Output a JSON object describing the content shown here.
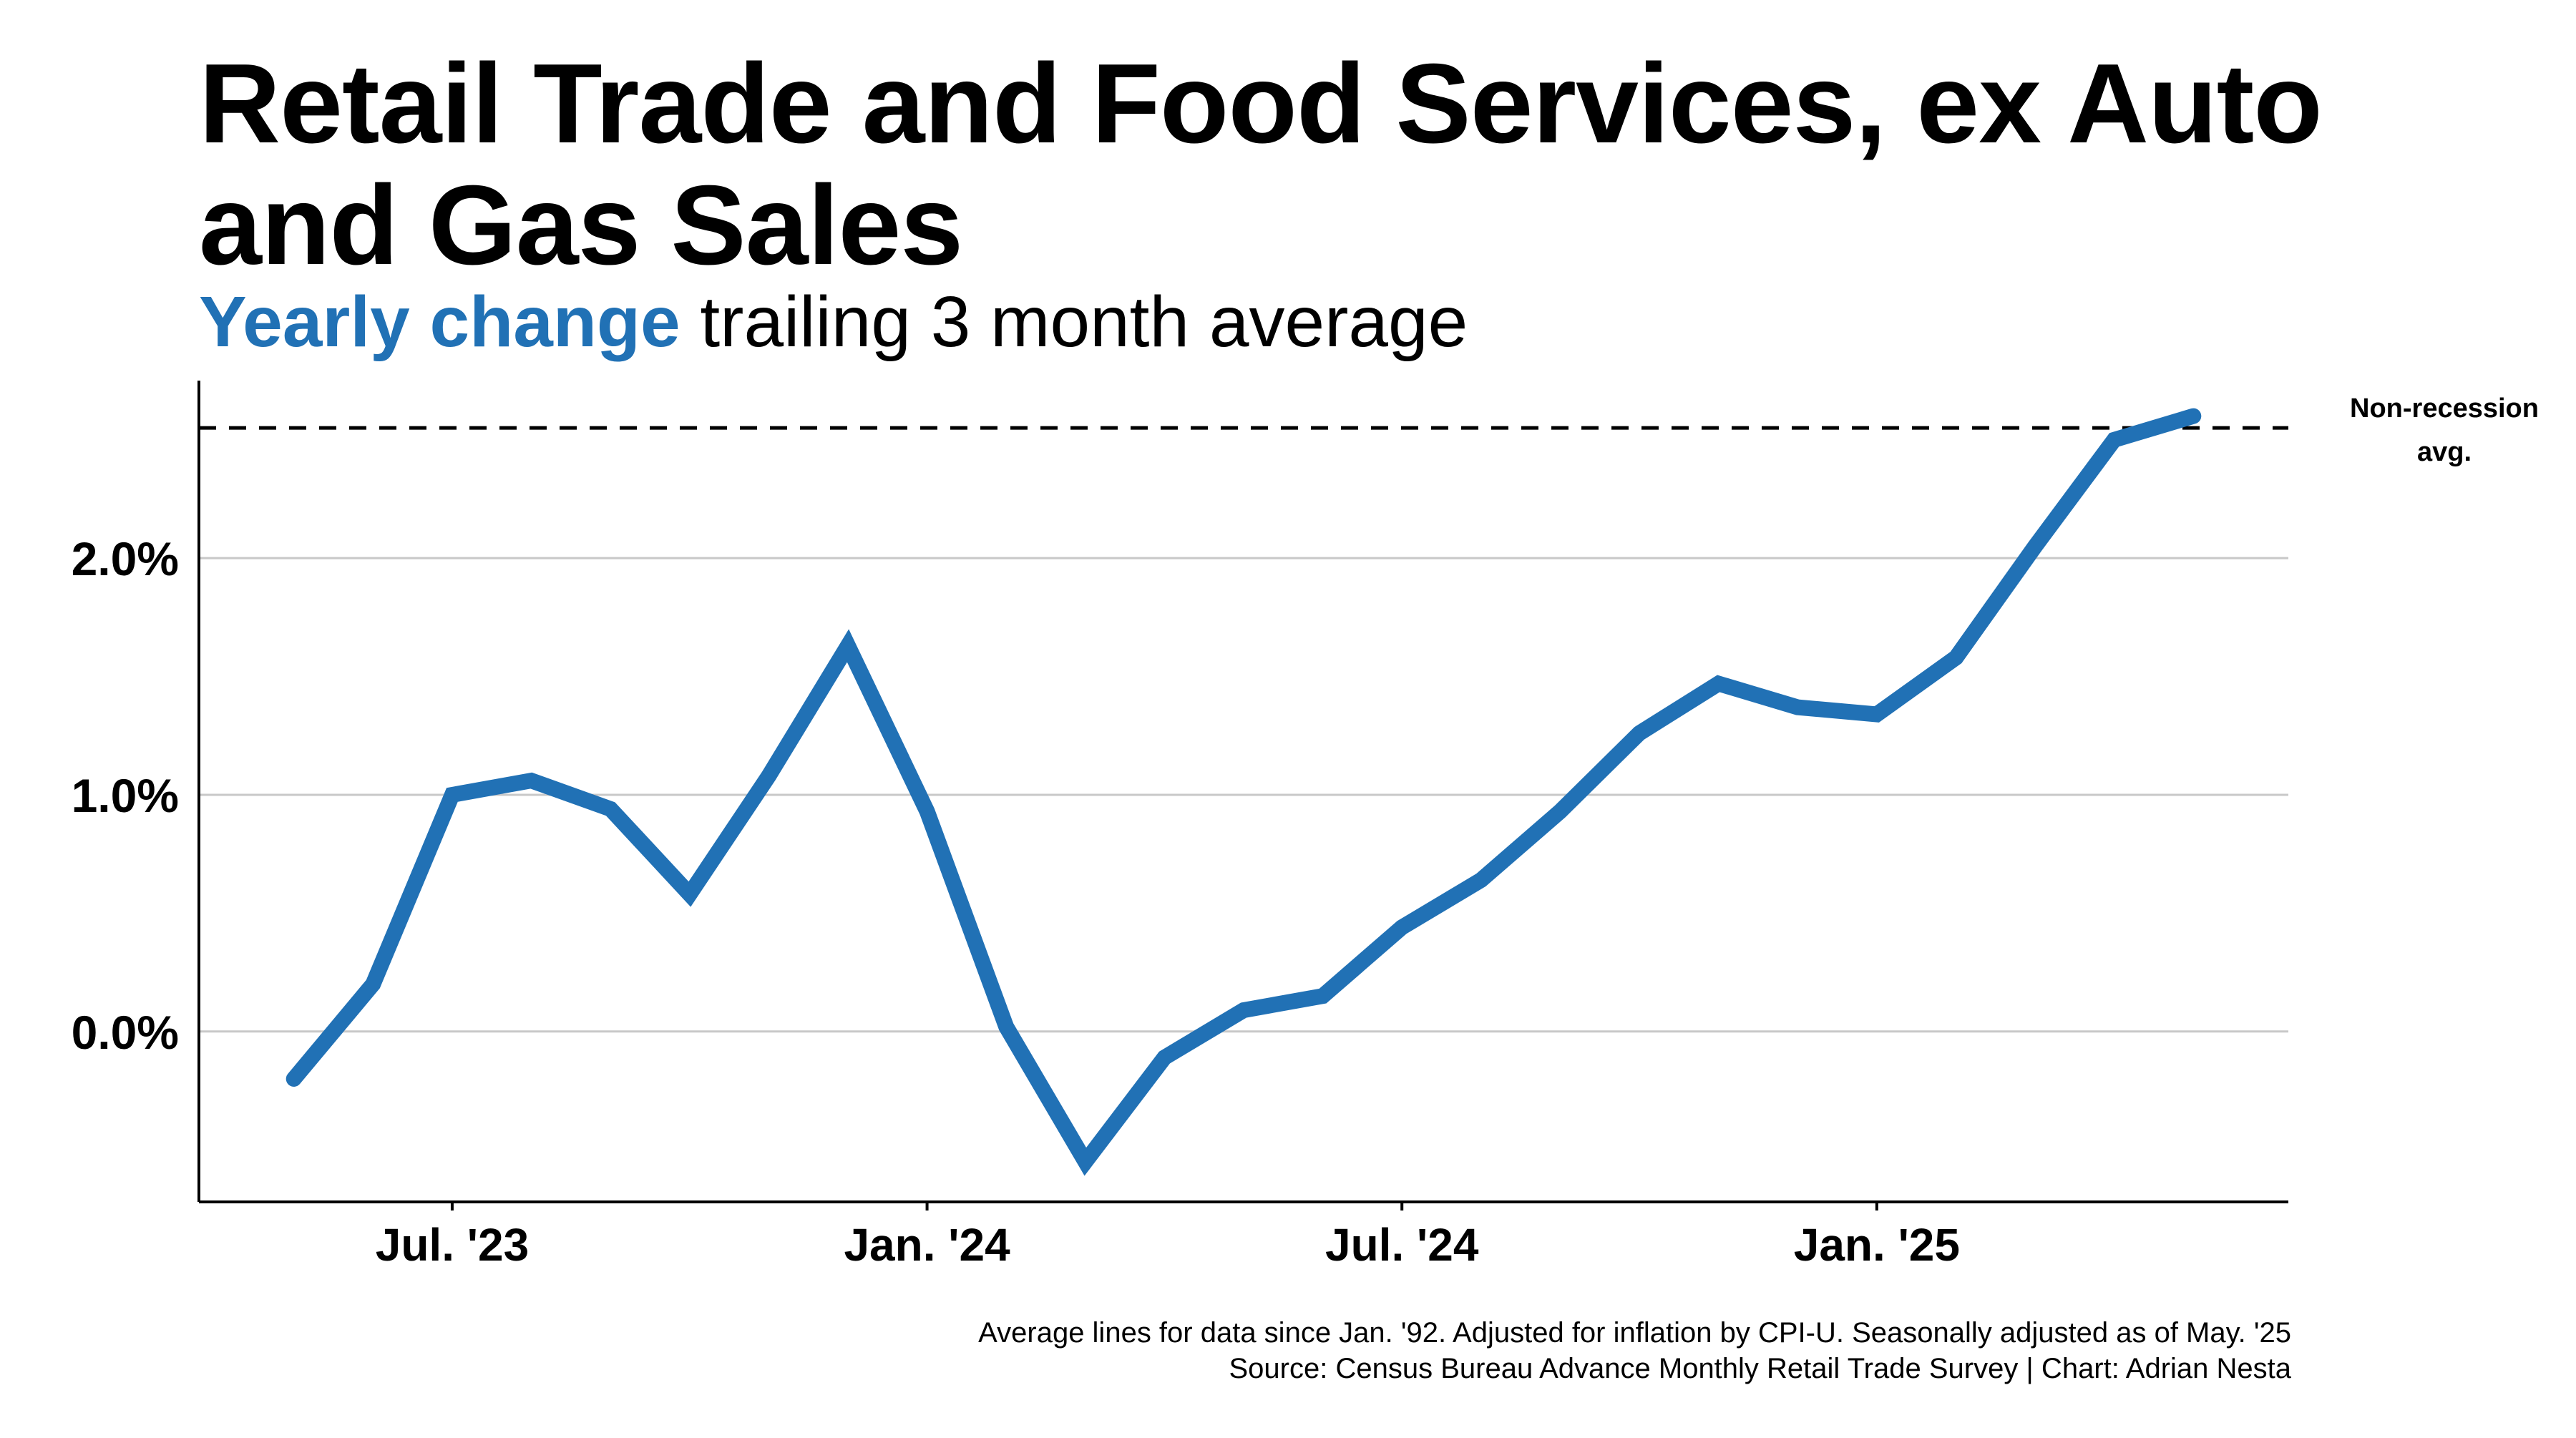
{
  "chart_data": {
    "type": "line",
    "title": "Retail Trade and Food Services, ex Auto and Gas Sales",
    "subtitle_highlight": "Yearly change",
    "subtitle_rest": " trailing 3 month average",
    "xlabel": "",
    "ylabel": "",
    "x_tick_labels": [
      "Jul. '23",
      "Jan. '24",
      "Jul. '24",
      "Jan. '25"
    ],
    "x_tick_positions": [
      "2023-07",
      "2024-01",
      "2024-07",
      "2025-01"
    ],
    "y_ticks": [
      0.0,
      1.0,
      2.0
    ],
    "y_tick_labels": [
      "0.0%",
      "1.0%",
      "2.0%"
    ],
    "ylim": [
      -0.72,
      2.75
    ],
    "grid": true,
    "series": [
      {
        "name": "Yearly change trailing 3 month average",
        "color": "#2171b5",
        "x": [
          "2023-05",
          "2023-06",
          "2023-07",
          "2023-08",
          "2023-09",
          "2023-10",
          "2023-11",
          "2023-12",
          "2024-01",
          "2024-02",
          "2024-03",
          "2024-04",
          "2024-05",
          "2024-06",
          "2024-07",
          "2024-08",
          "2024-09",
          "2024-10",
          "2024-11",
          "2024-12",
          "2025-01",
          "2025-02",
          "2025-03",
          "2025-04",
          "2025-05"
        ],
        "values": [
          -0.2,
          0.2,
          1.0,
          1.06,
          0.94,
          0.58,
          1.08,
          1.63,
          0.93,
          0.02,
          -0.55,
          -0.11,
          0.09,
          0.15,
          0.44,
          0.64,
          0.93,
          1.26,
          1.47,
          1.37,
          1.34,
          1.58,
          2.05,
          2.5,
          2.6
        ]
      }
    ],
    "reference_line": {
      "value": 2.55,
      "label_line1": "Non-recession",
      "label_line2": "avg.",
      "style": "dashed",
      "color": "#000000"
    }
  },
  "footnote": {
    "line1": "Average lines for data since Jan. '92. Adjusted for inflation by CPI-U. Seasonally adjusted as of May. '25",
    "line2": "Source: Census Bureau Advance Monthly Retail Trade Survey | Chart: Adrian Nesta"
  },
  "colors": {
    "accent": "#2171b5",
    "gridline": "#c8c8c8",
    "axis": "#000000"
  }
}
